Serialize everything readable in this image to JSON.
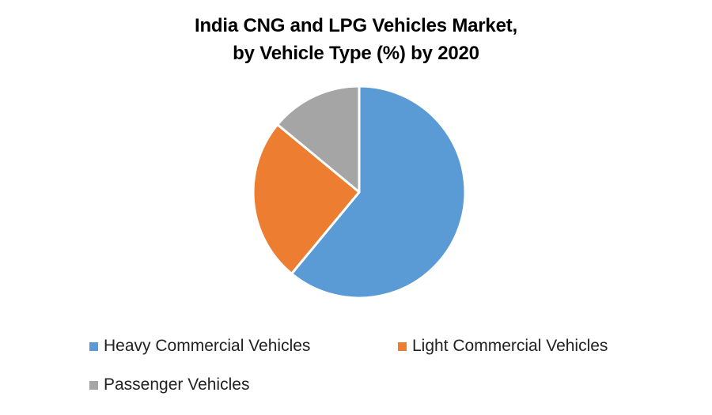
{
  "chart_data": {
    "type": "pie",
    "title_lines": [
      "India CNG and LPG Vehicles Market,",
      "by Vehicle Type (%) by 2020"
    ],
    "categories": [
      "Heavy Commercial Vehicles",
      "Light Commercial Vehicles",
      "Passenger Vehicles"
    ],
    "values": [
      61,
      25,
      14
    ],
    "unit": "%",
    "colors": [
      "#5B9BD5",
      "#ED7D31",
      "#A5A5A5"
    ],
    "start_angle": "12 o'clock",
    "direction": "clockwise",
    "legend_position": "bottom",
    "data_labels": false
  }
}
